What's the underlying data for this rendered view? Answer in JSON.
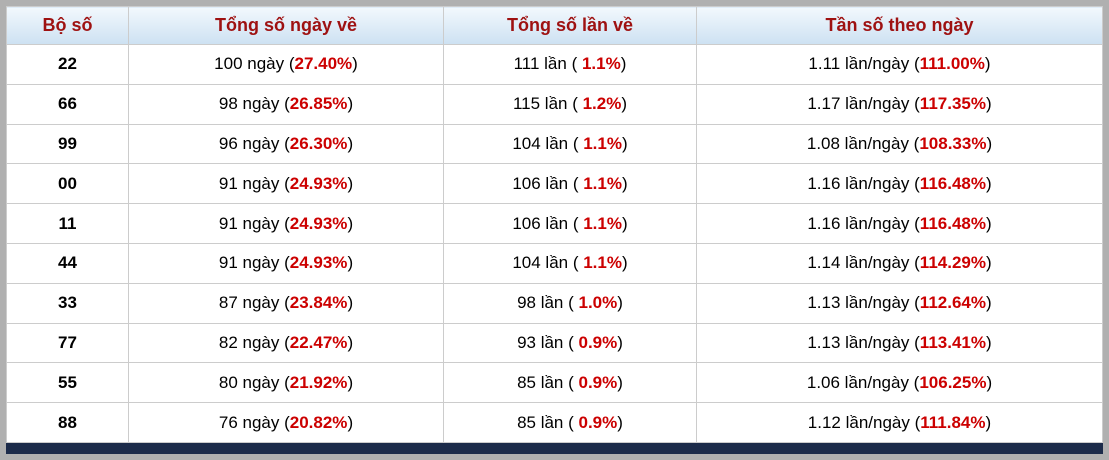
{
  "table": {
    "columns": [
      "Bộ số",
      "Tổng số ngày về",
      "Tổng số lần về",
      "Tần số theo ngày"
    ],
    "format": {
      "open": " (",
      "close": ")"
    },
    "rows": [
      {
        "pair": "22",
        "days": {
          "text": "100 ngày",
          "pct": "27.40%"
        },
        "times": {
          "text": "111 lần",
          "pct": " 1.1%"
        },
        "freq": {
          "text": "1.11 lần/ngày",
          "pct": "111.00%"
        }
      },
      {
        "pair": "66",
        "days": {
          "text": "98 ngày",
          "pct": "26.85%"
        },
        "times": {
          "text": "115 lần",
          "pct": " 1.2%"
        },
        "freq": {
          "text": "1.17 lần/ngày",
          "pct": "117.35%"
        }
      },
      {
        "pair": "99",
        "days": {
          "text": "96 ngày",
          "pct": "26.30%"
        },
        "times": {
          "text": "104 lần",
          "pct": " 1.1%"
        },
        "freq": {
          "text": "1.08 lần/ngày",
          "pct": "108.33%"
        }
      },
      {
        "pair": "00",
        "days": {
          "text": "91 ngày",
          "pct": "24.93%"
        },
        "times": {
          "text": "106 lần",
          "pct": " 1.1%"
        },
        "freq": {
          "text": "1.16 lần/ngày",
          "pct": "116.48%"
        }
      },
      {
        "pair": "11",
        "days": {
          "text": "91 ngày",
          "pct": "24.93%"
        },
        "times": {
          "text": "106 lần",
          "pct": " 1.1%"
        },
        "freq": {
          "text": "1.16 lần/ngày",
          "pct": "116.48%"
        }
      },
      {
        "pair": "44",
        "days": {
          "text": "91 ngày",
          "pct": "24.93%"
        },
        "times": {
          "text": "104 lần",
          "pct": " 1.1%"
        },
        "freq": {
          "text": "1.14 lần/ngày",
          "pct": "114.29%"
        }
      },
      {
        "pair": "33",
        "days": {
          "text": "87 ngày",
          "pct": "23.84%"
        },
        "times": {
          "text": "98 lần",
          "pct": " 1.0%"
        },
        "freq": {
          "text": "1.13 lần/ngày",
          "pct": "112.64%"
        }
      },
      {
        "pair": "77",
        "days": {
          "text": "82 ngày",
          "pct": "22.47%"
        },
        "times": {
          "text": "93 lần",
          "pct": " 0.9%"
        },
        "freq": {
          "text": "1.13 lần/ngày",
          "pct": "113.41%"
        }
      },
      {
        "pair": "55",
        "days": {
          "text": "80 ngày",
          "pct": "21.92%"
        },
        "times": {
          "text": "85 lần",
          "pct": " 0.9%"
        },
        "freq": {
          "text": "1.06 lần/ngày",
          "pct": "106.25%"
        }
      },
      {
        "pair": "88",
        "days": {
          "text": "76 ngày",
          "pct": "20.82%"
        },
        "times": {
          "text": "85 lần",
          "pct": " 0.9%"
        },
        "freq": {
          "text": "1.12 lần/ngày",
          "pct": "111.84%"
        }
      }
    ]
  },
  "colors": {
    "header_text": "#9e1111",
    "percent": "#cc0000",
    "header_bg_top": "#f2f8fd",
    "header_bg_bottom": "#cde1f2",
    "cell_border": "#cccccc",
    "frame": "#b0b0b0",
    "scrollbar": "#1c2b4a"
  }
}
